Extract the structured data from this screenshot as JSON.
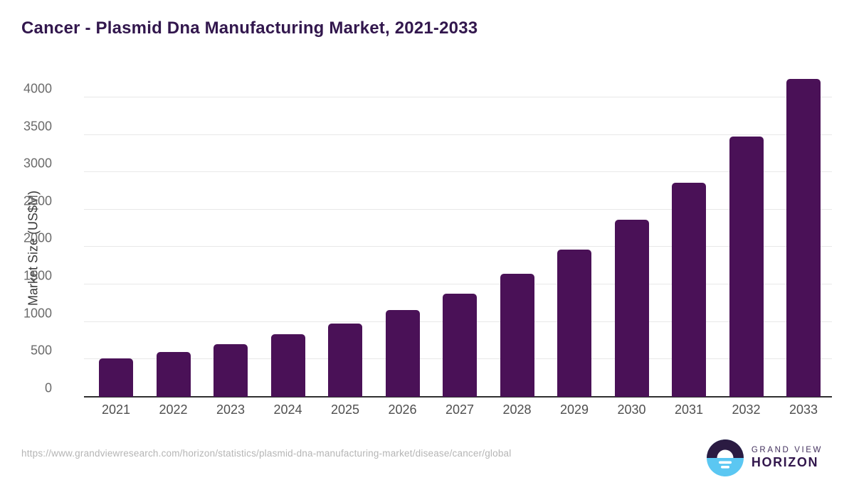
{
  "header": {
    "title": "Cancer - Plasmid Dna Manufacturing Market, 2021-2033"
  },
  "chart_data": {
    "type": "bar",
    "title": "Cancer - Plasmid Dna Manufacturing Market, 2021-2033",
    "categories": [
      "2021",
      "2022",
      "2023",
      "2024",
      "2025",
      "2026",
      "2027",
      "2028",
      "2029",
      "2030",
      "2031",
      "2032",
      "2033"
    ],
    "values": [
      510,
      600,
      705,
      840,
      980,
      1160,
      1375,
      1645,
      1970,
      2365,
      2855,
      3475,
      4250
    ],
    "xlabel": "",
    "ylabel": "Market Size (US$M)",
    "ylim": [
      0,
      4350
    ],
    "yticks": [
      0,
      500,
      1000,
      1500,
      2000,
      2500,
      3000,
      3500,
      4000
    ],
    "grid": true,
    "legend_position": "none",
    "bar_color": "#4A1157"
  },
  "footer": {
    "source_url": "https://www.grandviewresearch.com/horizon/statistics/plasmid-dna-manufacturing-market/disease/cancer/global",
    "logo": {
      "line1": "GRAND VIEW",
      "line2": "HORIZON"
    }
  },
  "colors": {
    "title_text": "#32174D",
    "bar": "#4A1157",
    "grid": "#E8E8E8",
    "axis_line": "#303030",
    "tick_text": "#4F4F4F",
    "source_text": "#B5B5B5",
    "logo_dark": "#2B1B42",
    "logo_blue": "#5BC7F2"
  }
}
